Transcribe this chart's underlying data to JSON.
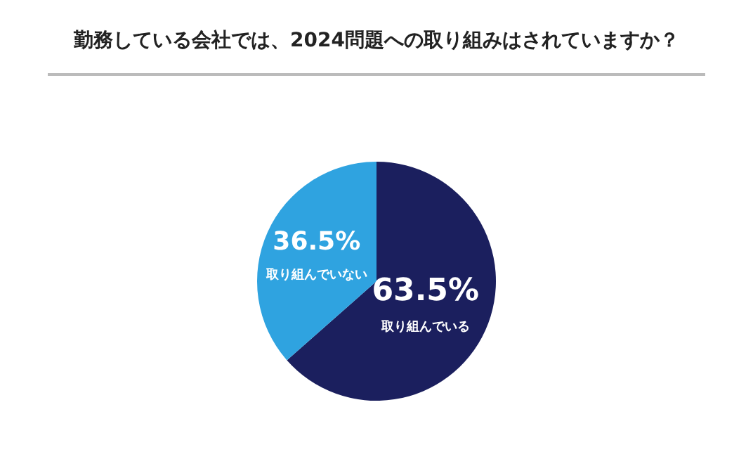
{
  "chart_data": {
    "type": "pie",
    "title": "勤務している会社では、2024問題への取り組みはされていますか？",
    "categories": [
      "取り組んでいる",
      "取り組んでいない"
    ],
    "values": [
      63.5,
      36.5
    ],
    "colors": [
      "#1b1f5e",
      "#2fa3e0"
    ],
    "value_labels": [
      "63.5%",
      "36.5%"
    ],
    "legend": false
  }
}
